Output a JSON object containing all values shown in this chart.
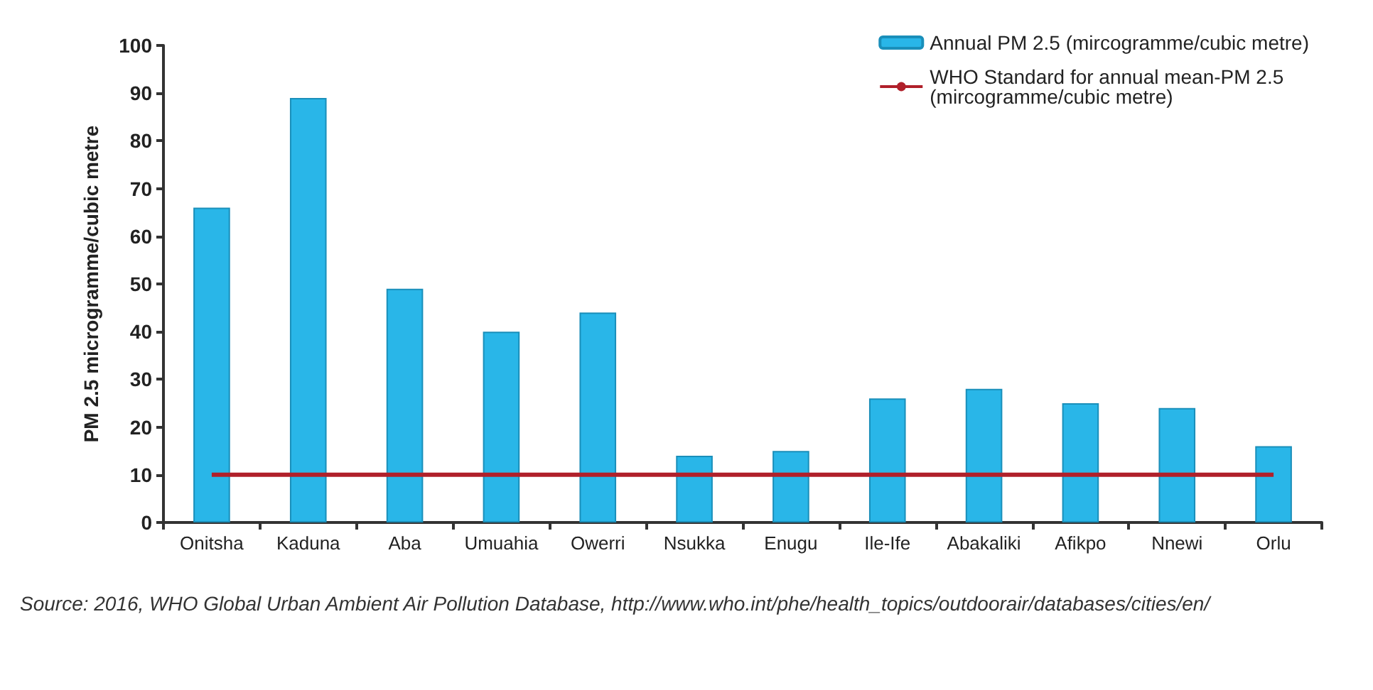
{
  "chart_data": {
    "type": "bar",
    "ylabel": "PM 2.5 microgramme/cubic metre",
    "categories": [
      "Onitsha",
      "Kaduna",
      "Aba",
      "Umuahia",
      "Owerri",
      "Nsukka",
      "Enugu",
      "Ile-Ife",
      "Abakaliki",
      "Afikpo",
      "Nnewi",
      "Orlu"
    ],
    "series": [
      {
        "name": "Annual PM 2.5 (mircogramme/cubic metre)",
        "color": "#29b6e8",
        "values": [
          66,
          89,
          49,
          40,
          44,
          14,
          15,
          26,
          28,
          25,
          24,
          16
        ]
      },
      {
        "type": "line",
        "name": "WHO Standard for annual mean-PM 2.5 (mircogramme/cubic metre)",
        "color": "#b0202a",
        "values": [
          10,
          10,
          10,
          10,
          10,
          10,
          10,
          10,
          10,
          10,
          10,
          10
        ]
      }
    ],
    "ylim": [
      0,
      100
    ],
    "yticks": [
      0,
      10,
      20,
      30,
      40,
      50,
      60,
      70,
      80,
      90,
      100
    ],
    "grid": false,
    "legend": "top right",
    "marker": "none",
    "annotations": [
      "Source: 2016, WHO Global Urban Ambient Air Pollution Database, http://www.who.int/phe/health_topics/outdoorair/databases/cities/en/"
    ]
  }
}
